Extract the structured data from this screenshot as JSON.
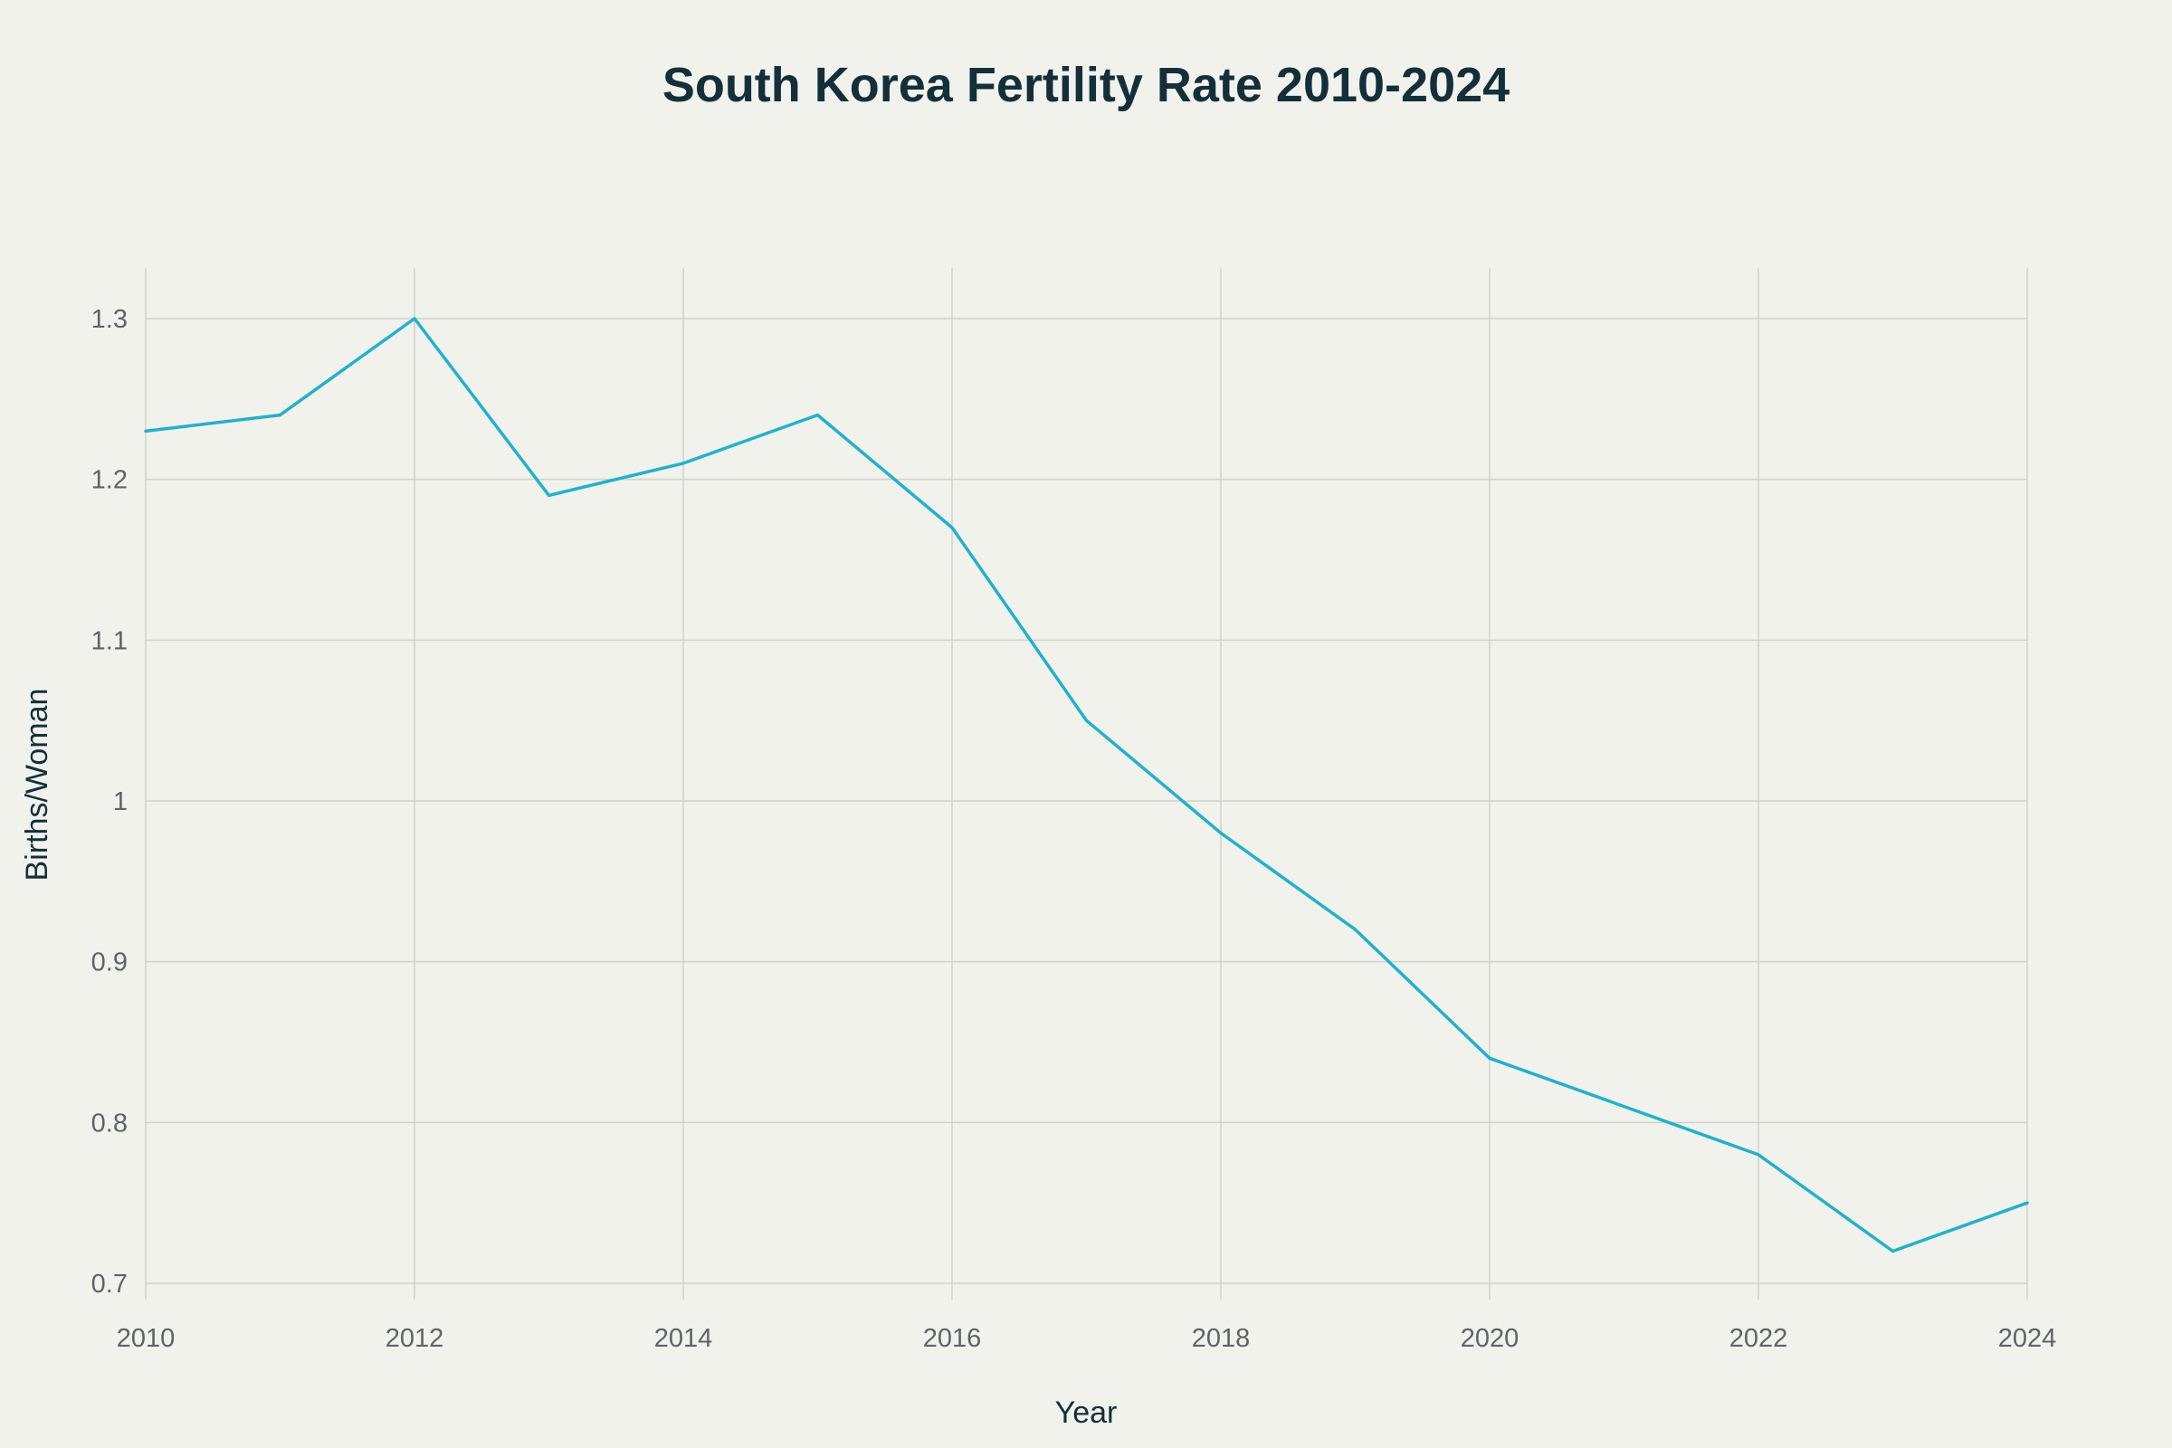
{
  "chart_data": {
    "type": "line",
    "title": "South Korea Fertility Rate 2010-2024",
    "xlabel": "Year",
    "ylabel": "Births/Woman",
    "x": [
      2010,
      2011,
      2012,
      2013,
      2014,
      2015,
      2016,
      2017,
      2018,
      2019,
      2020,
      2021,
      2022,
      2023,
      2024
    ],
    "series": [
      {
        "values": [
          1.23,
          1.24,
          1.3,
          1.19,
          1.21,
          1.24,
          1.17,
          1.05,
          0.98,
          0.92,
          0.84,
          0.81,
          0.78,
          0.72,
          0.75
        ]
      }
    ],
    "xlim": [
      2010,
      2024
    ],
    "ylim": [
      0.7,
      1.3
    ],
    "xticks": [
      "2010",
      "2012",
      "2014",
      "2016",
      "2018",
      "2020",
      "2022",
      "2024"
    ],
    "yticks": [
      "0.7",
      "0.8",
      "0.9",
      "1",
      "1.1",
      "1.2",
      "1.3"
    ],
    "grid": true,
    "colors": {
      "line": "#1fb2cc",
      "grid": "#d2d2cc",
      "background": "#f2f2ed",
      "title": "#13303a",
      "tick_text": "#5f6368"
    }
  }
}
